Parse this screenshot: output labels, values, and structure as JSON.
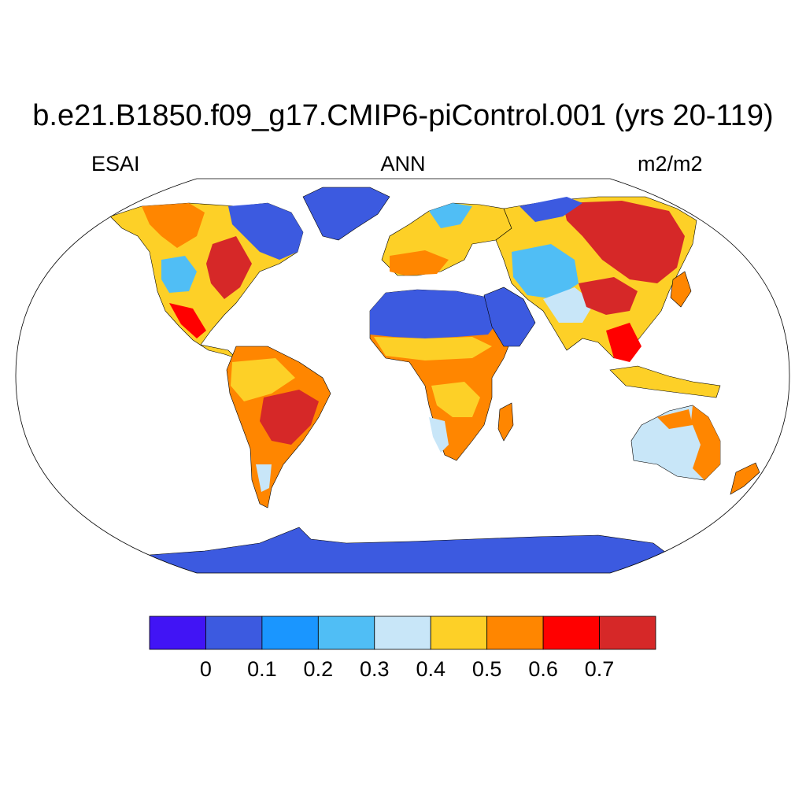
{
  "title": "b.e21.B1850.f09_g17.CMIP6-piControl.001 (yrs 20-119)",
  "subtitle_left": "ESAI",
  "subtitle_center": "ANN",
  "subtitle_right": "m2/m2",
  "colorbar": {
    "colors": [
      "#4114f5",
      "#3c5ae0",
      "#1a96ff",
      "#50bef5",
      "#c8e6f8",
      "#fdd027",
      "#ff8600",
      "#ff0000",
      "#d62828"
    ],
    "labels": [
      "0",
      "0.1",
      "0.2",
      "0.3",
      "0.4",
      "0.5",
      "0.6",
      "0.7"
    ]
  },
  "colors": {
    "ocean": "#ffffff",
    "outline": "#000000"
  }
}
